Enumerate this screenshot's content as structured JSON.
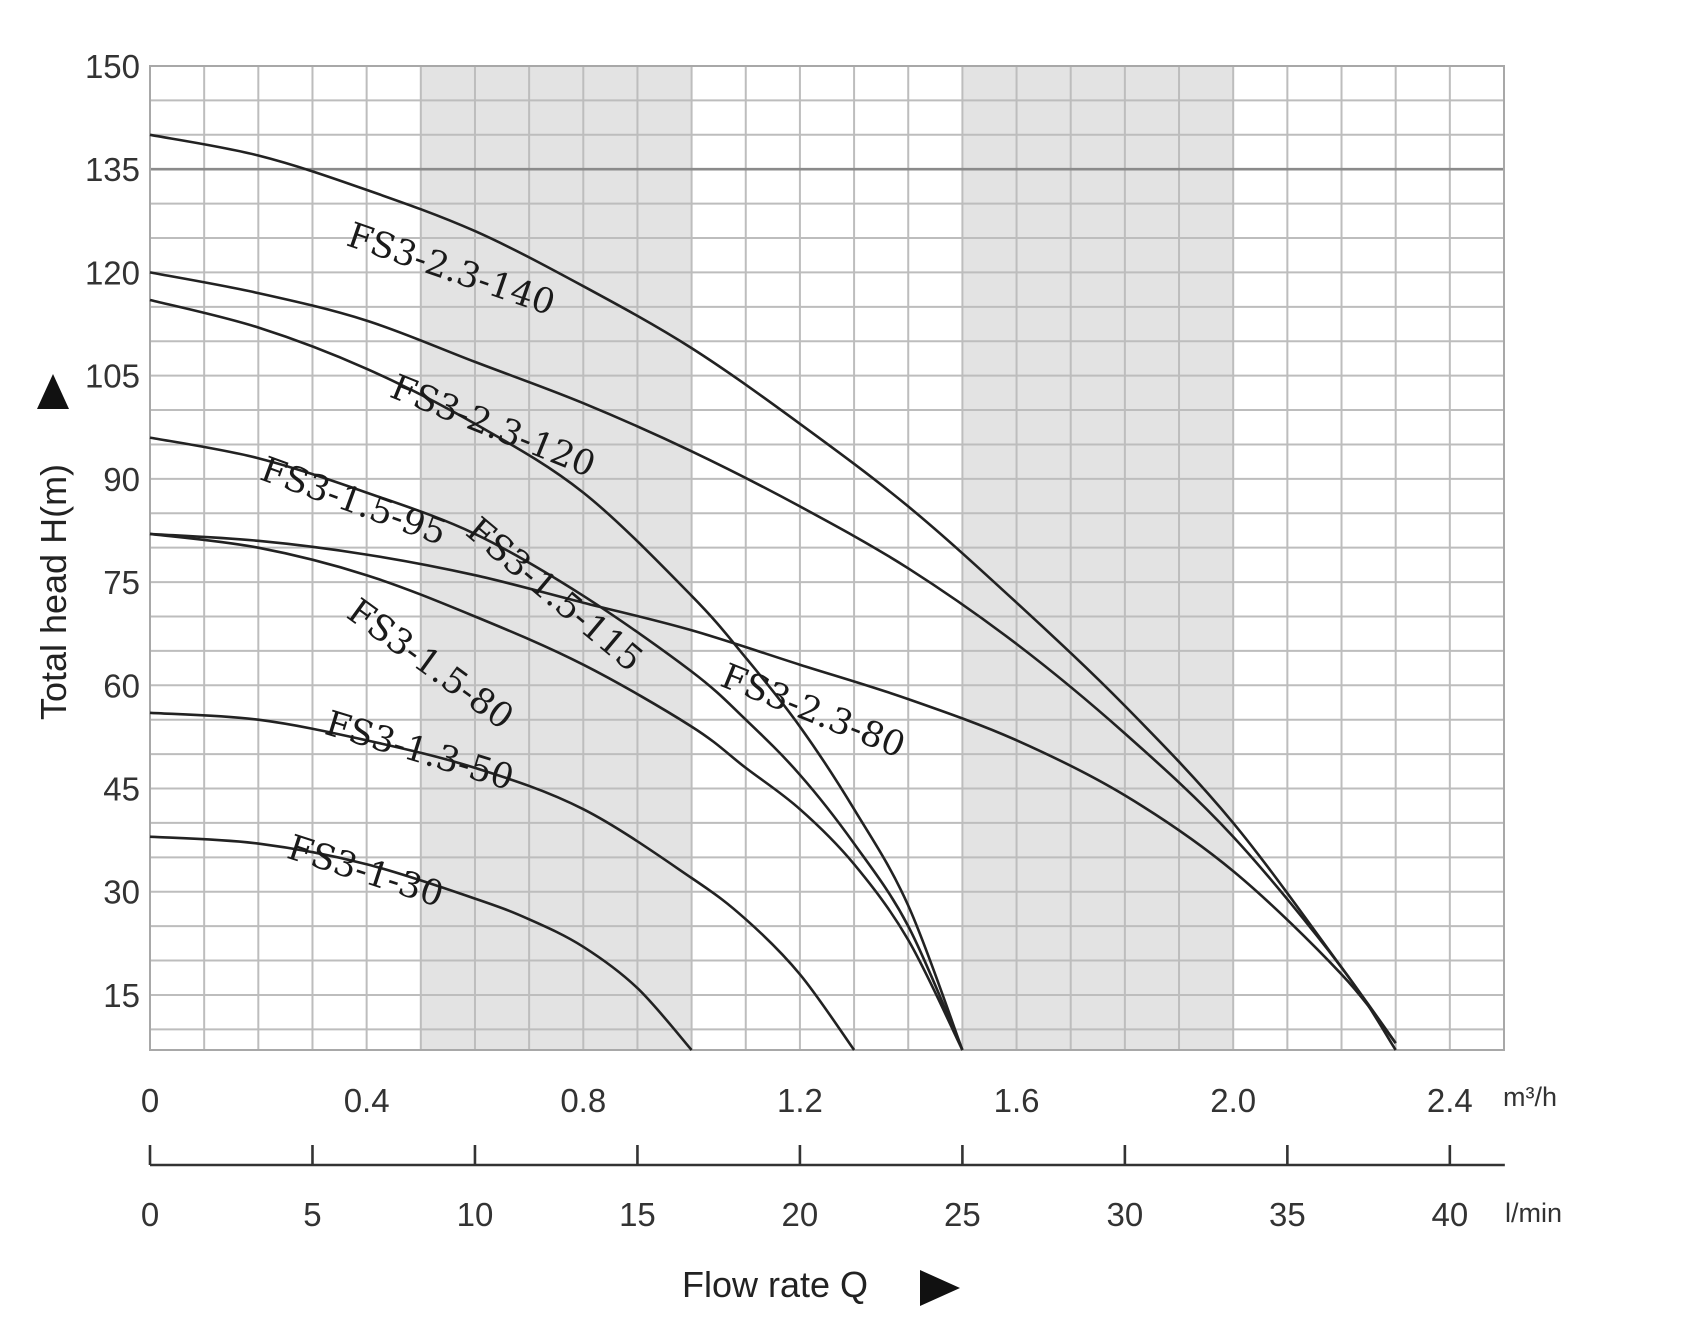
{
  "chart_data": {
    "type": "line",
    "xlabel": "Flow rate Q",
    "ylabel": "Total head H(m)",
    "x_unit": "m³/h",
    "x2_unit": "l/min",
    "xlim": [
      0,
      2.5
    ],
    "ylim": [
      7,
      150
    ],
    "x_ticks": [
      "0",
      "0.4",
      "0.8",
      "1.2",
      "1.6",
      "2.0",
      "2.4"
    ],
    "x2_ticks": [
      "0",
      "5",
      "10",
      "15",
      "20",
      "25",
      "30",
      "35",
      "40"
    ],
    "y_ticks": [
      "15",
      "30",
      "45",
      "60",
      "75",
      "90",
      "105",
      "120",
      "135",
      "150"
    ],
    "grid": true,
    "highlight_bands": [
      [
        0.5,
        1.0
      ],
      [
        1.5,
        2.0
      ]
    ],
    "reference_line_y": 135,
    "series": [
      {
        "name": "FS3-2.3-140",
        "x": [
          0,
          0.2,
          0.4,
          0.6,
          0.8,
          1.0,
          1.2,
          1.4,
          1.6,
          1.8,
          2.0,
          2.2,
          2.3
        ],
        "y": [
          140,
          137,
          132,
          126,
          118,
          109,
          98,
          86,
          72,
          57,
          40,
          19,
          8
        ]
      },
      {
        "name": "FS3-2.3-120",
        "x": [
          0,
          0.2,
          0.4,
          0.6,
          0.8,
          1.0,
          1.2,
          1.4,
          1.6,
          1.8,
          2.0,
          2.2,
          2.3
        ],
        "y": [
          120,
          117,
          113,
          107,
          101,
          94,
          86,
          77,
          66,
          53,
          38,
          19,
          7
        ]
      },
      {
        "name": "FS3-1.5-115",
        "x": [
          0,
          0.2,
          0.4,
          0.6,
          0.8,
          1.0,
          1.1,
          1.2,
          1.3,
          1.4,
          1.5
        ],
        "y": [
          116,
          112,
          106,
          98,
          88,
          73,
          64,
          54,
          42,
          28,
          7
        ]
      },
      {
        "name": "FS3-1.5-95",
        "x": [
          0,
          0.2,
          0.4,
          0.6,
          0.8,
          1.0,
          1.1,
          1.2,
          1.3,
          1.4,
          1.5
        ],
        "y": [
          96,
          93,
          88,
          82,
          73,
          62,
          55,
          47,
          37,
          25,
          7
        ]
      },
      {
        "name": "FS3-1.5-80",
        "x": [
          0,
          0.2,
          0.4,
          0.6,
          0.8,
          1.0,
          1.1,
          1.2,
          1.3,
          1.4,
          1.5
        ],
        "y": [
          82,
          80,
          76,
          70,
          63,
          54,
          48,
          42,
          34,
          23,
          7
        ]
      },
      {
        "name": "FS3-2.3-80",
        "x": [
          0,
          0.2,
          0.4,
          0.6,
          0.8,
          1.0,
          1.2,
          1.4,
          1.6,
          1.8,
          2.0,
          2.2,
          2.3
        ],
        "y": [
          82,
          81,
          79,
          76,
          72,
          68,
          63,
          58,
          52,
          44,
          33,
          18,
          8
        ]
      },
      {
        "name": "FS3-1.3-50",
        "x": [
          0,
          0.2,
          0.4,
          0.6,
          0.8,
          1.0,
          1.1,
          1.2,
          1.3
        ],
        "y": [
          56,
          55,
          52,
          48,
          42,
          32,
          26,
          18,
          7
        ]
      },
      {
        "name": "FS3-1-30",
        "x": [
          0,
          0.2,
          0.4,
          0.6,
          0.7,
          0.8,
          0.9,
          1.0
        ],
        "y": [
          38,
          37,
          34,
          29,
          26,
          22,
          16,
          7
        ]
      }
    ]
  }
}
